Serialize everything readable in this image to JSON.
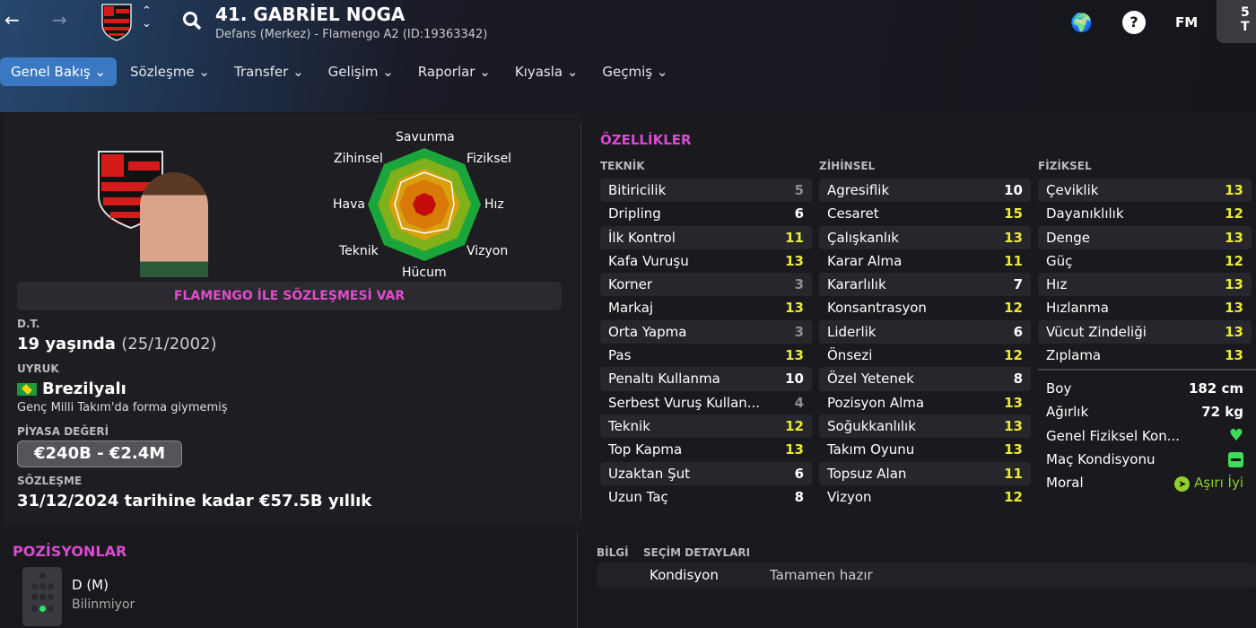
{
  "header": {
    "title": "41. GABRİEL NOGA",
    "subtitle": "Defans (Merkez) - Flamengo A2 (ID:19363342)",
    "fm_label": "FM",
    "corner_text": "5 T"
  },
  "tabs": [
    {
      "label": "Genel Bakış"
    },
    {
      "label": "Sözleşme"
    },
    {
      "label": "Transfer"
    },
    {
      "label": "Gelişim"
    },
    {
      "label": "Raporlar"
    },
    {
      "label": "Kıyasla"
    },
    {
      "label": "Geçmiş"
    }
  ],
  "radar": {
    "labels": [
      "Savunma",
      "Fiziksel",
      "Hız",
      "Vizyon",
      "Hücum",
      "Teknik",
      "Hava",
      "Zihinsel"
    ]
  },
  "profile": {
    "contract_banner": "FLAMENGO İLE SÖZLEŞMESİ VAR",
    "dob_label": "D.T.",
    "age": "19 yaşında",
    "dob": "(25/1/2002)",
    "nationality_label": "UYRUK",
    "nationality": "Brezilyalı",
    "youth_caps": "Genç Milli Takım'da forma giymemiş",
    "value_label": "PİYASA DEĞERİ",
    "value": "€240B - €2.4M",
    "contract_label": "SÖZLEŞME",
    "contract": "31/12/2024 tarihine kadar €57.5B yıllık"
  },
  "attributes": {
    "title": "ÖZELLİKLER",
    "technical": {
      "label": "TEKNİK",
      "items": [
        [
          "Bitiricilik",
          5
        ],
        [
          "Dripling",
          6
        ],
        [
          "İlk Kontrol",
          11
        ],
        [
          "Kafa Vuruşu",
          13
        ],
        [
          "Korner",
          3
        ],
        [
          "Markaj",
          13
        ],
        [
          "Orta Yapma",
          3
        ],
        [
          "Pas",
          13
        ],
        [
          "Penaltı Kullanma",
          10
        ],
        [
          "Serbest Vuruş Kullan...",
          4
        ],
        [
          "Teknik",
          12
        ],
        [
          "Top Kapma",
          13
        ],
        [
          "Uzaktan Şut",
          6
        ],
        [
          "Uzun Taç",
          8
        ]
      ]
    },
    "mental": {
      "label": "ZİHİNSEL",
      "items": [
        [
          "Agresiflik",
          10
        ],
        [
          "Cesaret",
          15
        ],
        [
          "Çalışkanlık",
          13
        ],
        [
          "Karar Alma",
          11
        ],
        [
          "Kararlılık",
          7
        ],
        [
          "Konsantrasyon",
          12
        ],
        [
          "Liderlik",
          6
        ],
        [
          "Önsezi",
          12
        ],
        [
          "Özel Yetenek",
          8
        ],
        [
          "Pozisyon Alma",
          13
        ],
        [
          "Soğukkanlılık",
          13
        ],
        [
          "Takım Oyunu",
          13
        ],
        [
          "Topsuz Alan",
          11
        ],
        [
          "Vizyon",
          12
        ]
      ]
    },
    "physical": {
      "label": "FİZİKSEL",
      "items": [
        [
          "Çeviklik",
          13
        ],
        [
          "Dayanıklılık",
          12
        ],
        [
          "Denge",
          13
        ],
        [
          "Güç",
          12
        ],
        [
          "Hız",
          13
        ],
        [
          "Hızlanma",
          13
        ],
        [
          "Vücut Zindeliği",
          13
        ],
        [
          "Zıplama",
          13
        ]
      ]
    }
  },
  "physical_info": {
    "height_label": "Boy",
    "height": "182 cm",
    "weight_label": "Ağırlık",
    "weight": "72 kg",
    "fitness_label": "Genel Fiziksel Kon...",
    "match_fitness_label": "Maç Kondisyonu",
    "morale_label": "Moral",
    "morale": "Aşırı İyi",
    "colors": {
      "fitness": "#3ddc5a",
      "morale": "#8fd12a"
    }
  },
  "positions": {
    "title": "POZİSYONLAR",
    "position": "D (M)",
    "familiarity": "Bilinmiyor"
  },
  "info": {
    "tab1": "BİLGİ",
    "tab2": "SEÇİM DETAYLARI",
    "row_label": "Kondisyon",
    "row_value": "Tamamen hazır"
  }
}
